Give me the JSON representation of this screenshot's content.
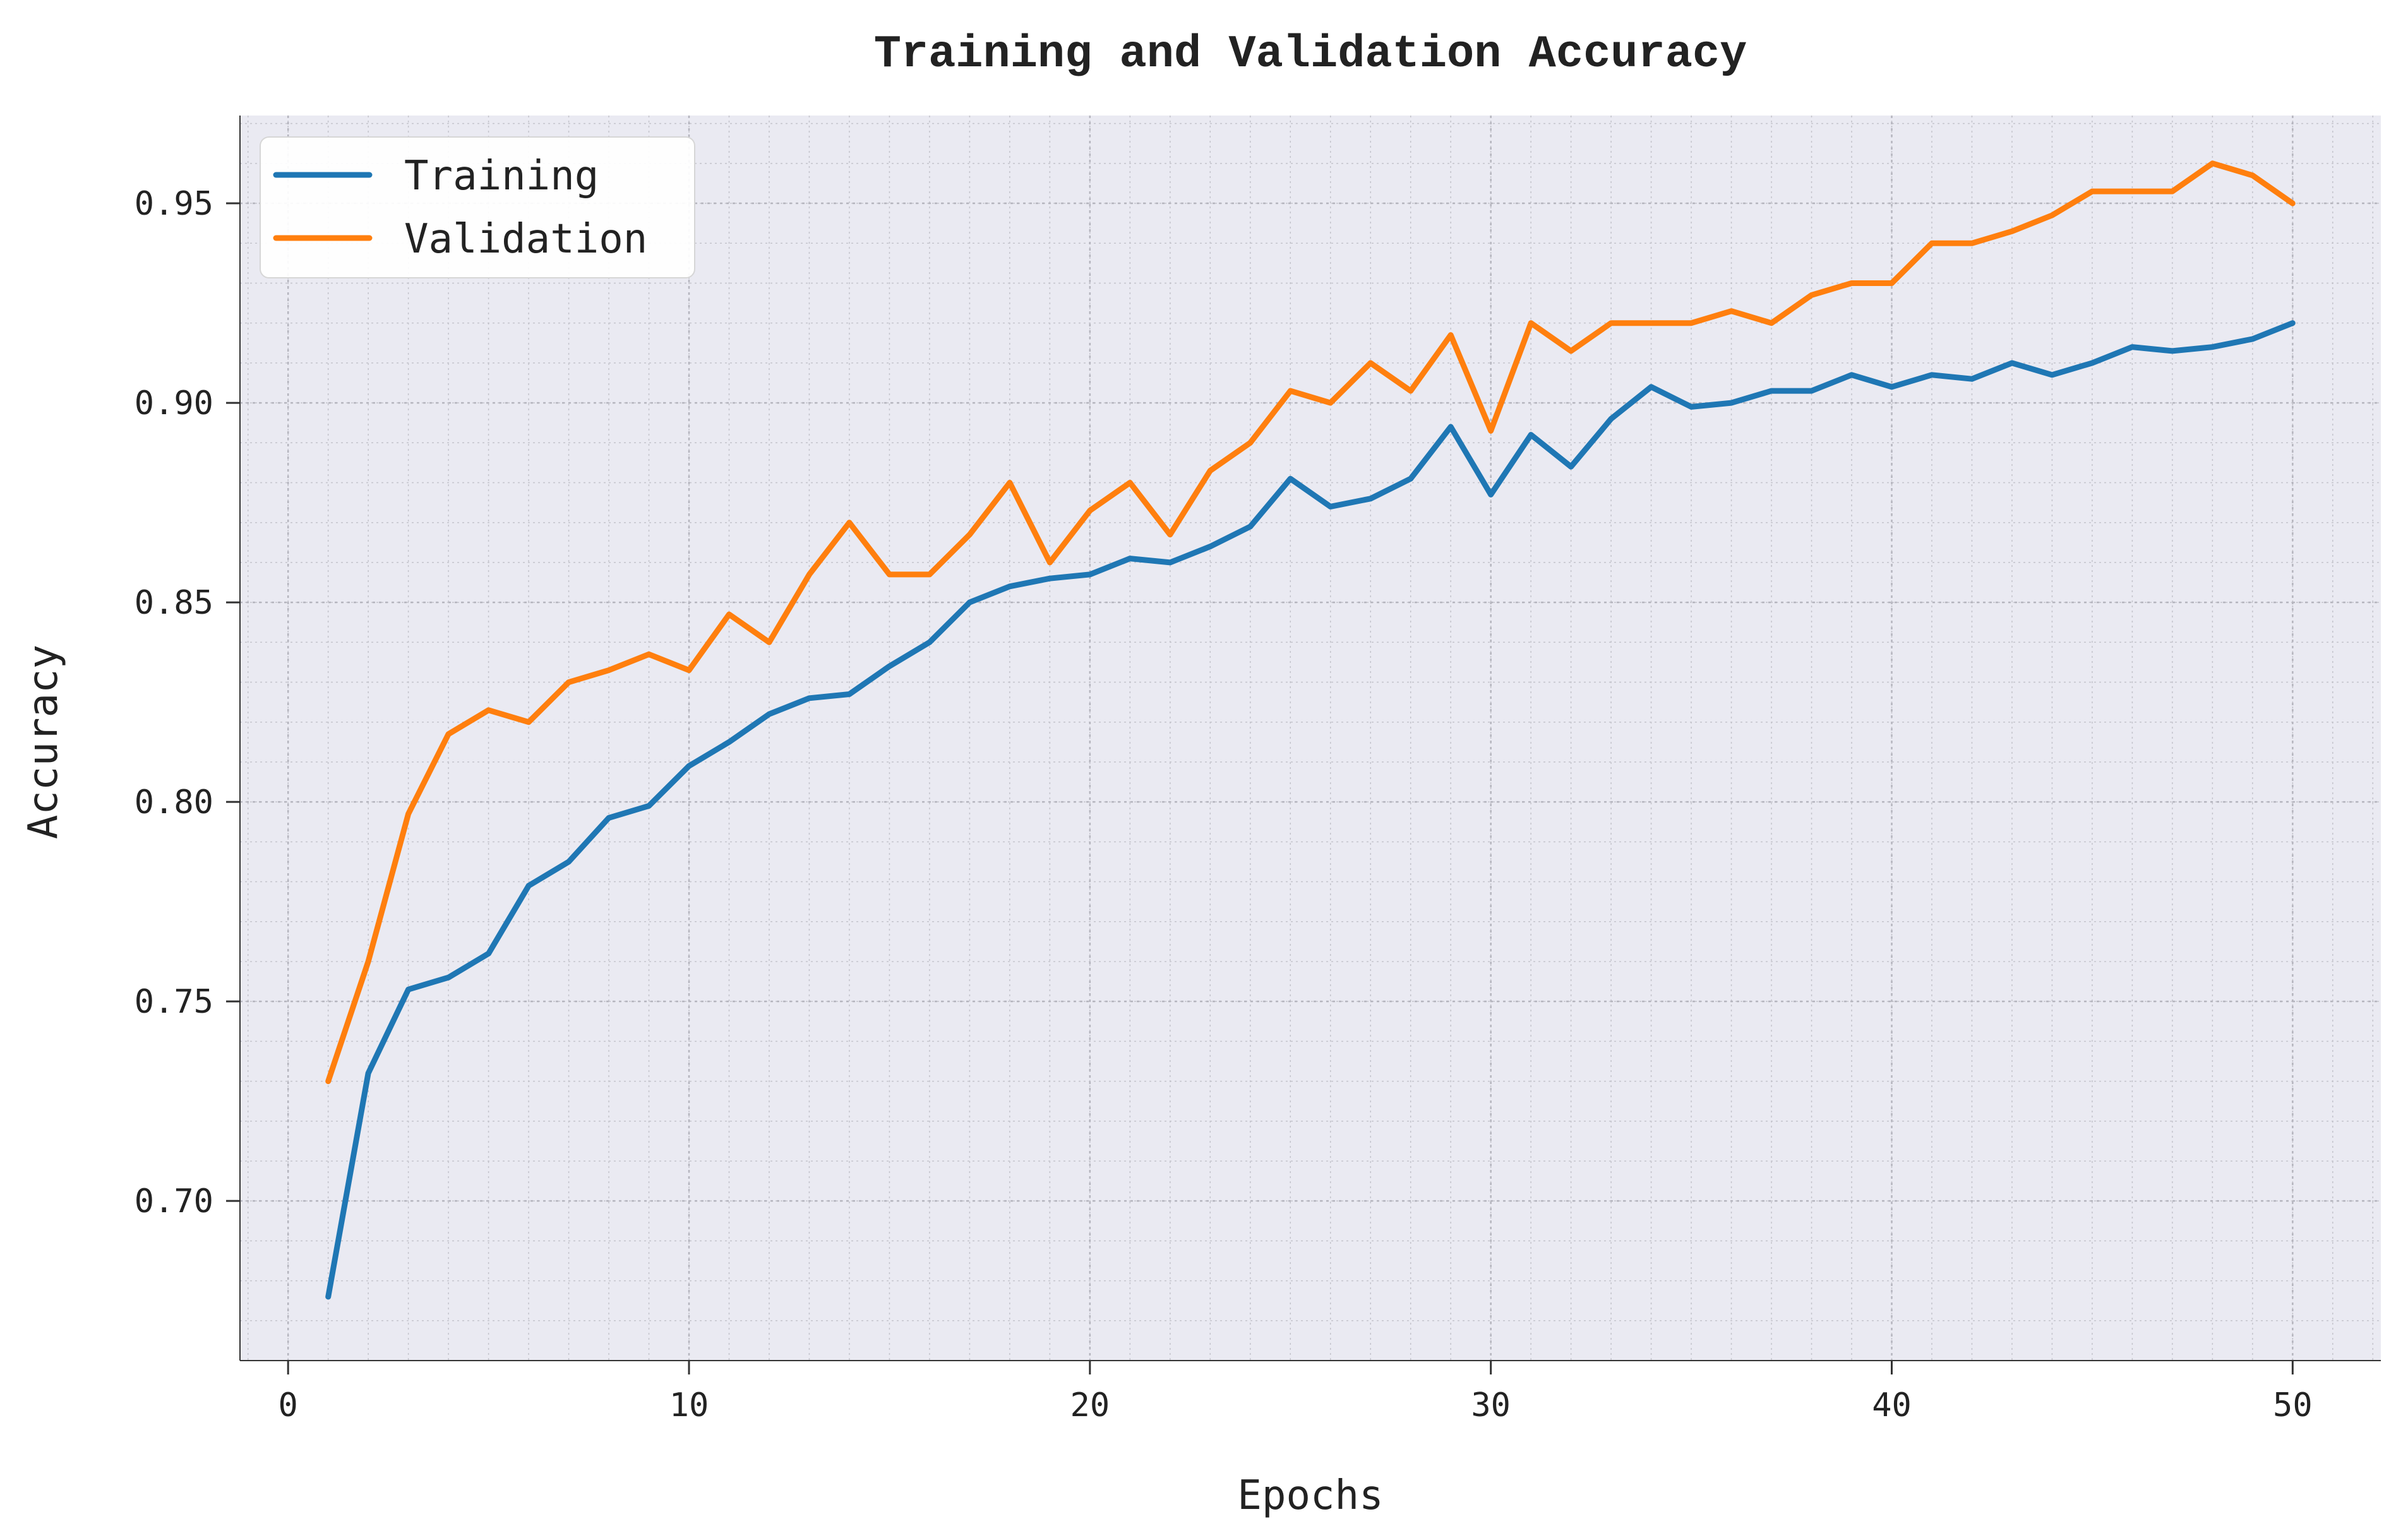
{
  "chart_data": {
    "type": "line",
    "title": "Training and Validation Accuracy",
    "xlabel": "Epochs",
    "ylabel": "Accuracy",
    "xlim": [
      -1.2,
      52.2
    ],
    "ylim": [
      0.66,
      0.972
    ],
    "xticks": [
      0,
      10,
      20,
      30,
      40,
      50
    ],
    "xtick_labels": [
      "0",
      "10",
      "20",
      "30",
      "40",
      "50"
    ],
    "xminor_step": 1,
    "yticks": [
      0.7,
      0.75,
      0.8,
      0.85,
      0.9,
      0.95
    ],
    "ytick_labels": [
      "0.70",
      "0.75",
      "0.80",
      "0.85",
      "0.90",
      "0.95"
    ],
    "yminor_step": 0.01,
    "grid": true,
    "legend_position": "top-left",
    "x": [
      1,
      2,
      3,
      4,
      5,
      6,
      7,
      8,
      9,
      10,
      11,
      12,
      13,
      14,
      15,
      16,
      17,
      18,
      19,
      20,
      21,
      22,
      23,
      24,
      25,
      26,
      27,
      28,
      29,
      30,
      31,
      32,
      33,
      34,
      35,
      36,
      37,
      38,
      39,
      40,
      41,
      42,
      43,
      44,
      45,
      46,
      47,
      48,
      49,
      50
    ],
    "series": [
      {
        "name": "Training",
        "color": "#1f77b4",
        "values": [
          0.676,
          0.732,
          0.753,
          0.756,
          0.762,
          0.779,
          0.785,
          0.796,
          0.799,
          0.809,
          0.815,
          0.822,
          0.826,
          0.827,
          0.834,
          0.84,
          0.85,
          0.854,
          0.856,
          0.857,
          0.861,
          0.86,
          0.864,
          0.869,
          0.881,
          0.874,
          0.876,
          0.881,
          0.894,
          0.877,
          0.892,
          0.884,
          0.896,
          0.904,
          0.899,
          0.9,
          0.903,
          0.903,
          0.907,
          0.904,
          0.907,
          0.906,
          0.91,
          0.907,
          0.91,
          0.914,
          0.913,
          0.914,
          0.916,
          0.92
        ]
      },
      {
        "name": "Validation",
        "color": "#ff7f0e",
        "values": [
          0.73,
          0.76,
          0.797,
          0.817,
          0.823,
          0.82,
          0.83,
          0.833,
          0.837,
          0.833,
          0.847,
          0.84,
          0.857,
          0.87,
          0.857,
          0.857,
          0.867,
          0.88,
          0.86,
          0.873,
          0.88,
          0.867,
          0.883,
          0.89,
          0.903,
          0.9,
          0.91,
          0.903,
          0.917,
          0.893,
          0.92,
          0.913,
          0.92,
          0.92,
          0.92,
          0.923,
          0.92,
          0.927,
          0.93,
          0.93,
          0.94,
          0.94,
          0.943,
          0.947,
          0.953,
          0.953,
          0.953,
          0.96,
          0.957,
          0.95
        ]
      }
    ]
  }
}
